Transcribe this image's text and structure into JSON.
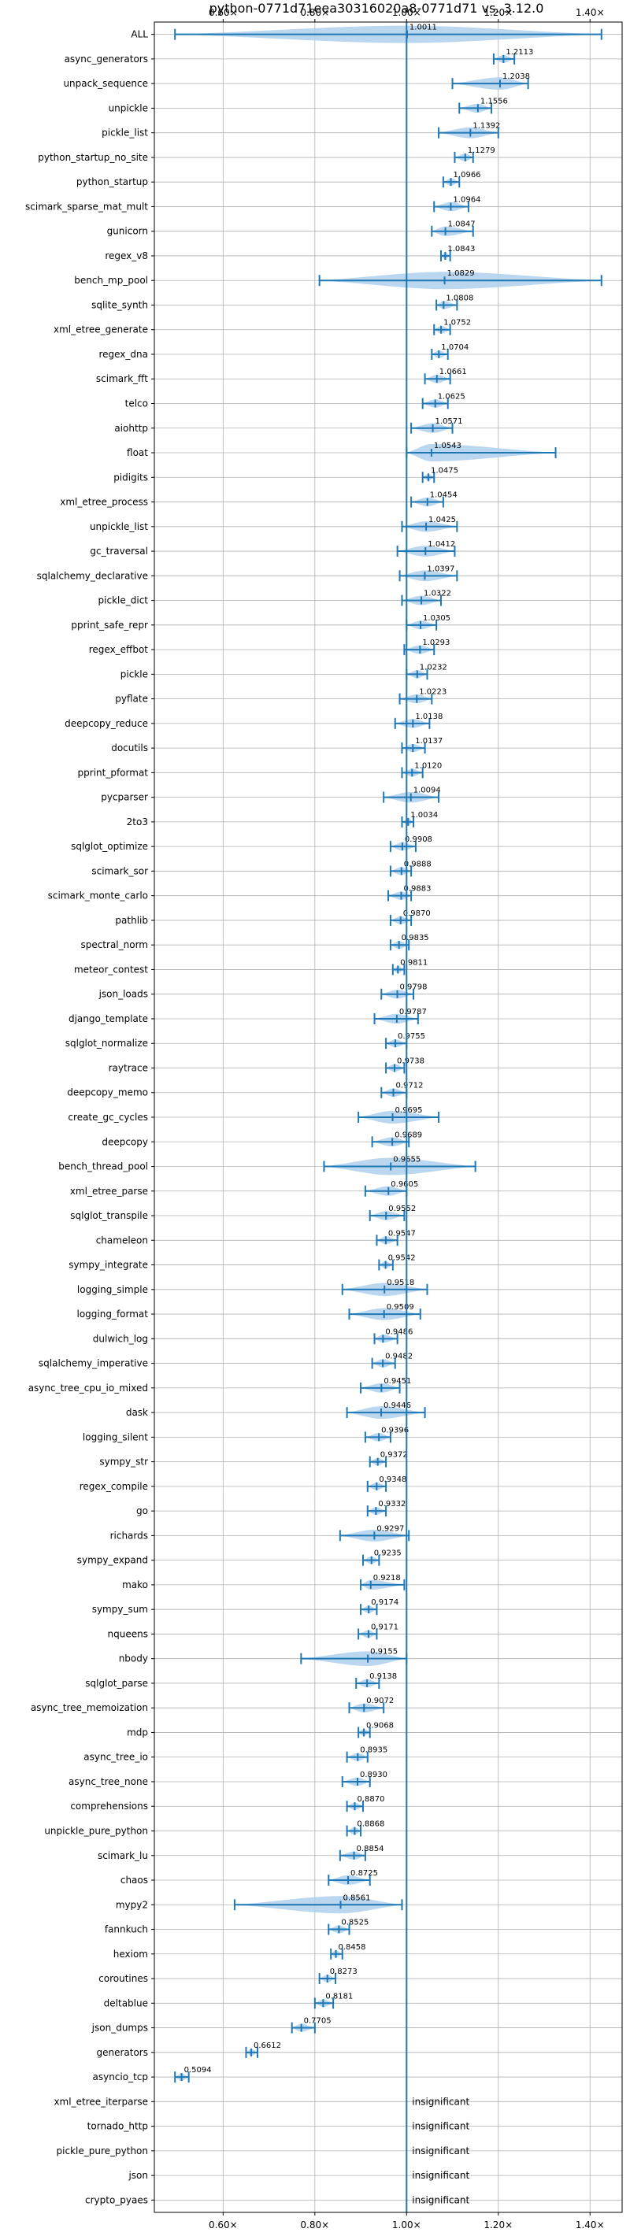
{
  "chart_data": {
    "type": "violin",
    "title": "python-0771d71eea30316020a8-0771d71 vs. 3.12.0",
    "xlabel": "",
    "ylabel": "",
    "xlim": [
      0.45,
      1.47
    ],
    "xticks": [
      0.6,
      0.8,
      1.0,
      1.2,
      1.4
    ],
    "xtick_labels": [
      "0.60×",
      "0.80×",
      "1.00×",
      "1.20×",
      "1.40×"
    ],
    "reference_line": 1.0,
    "grid": true,
    "benchmarks": [
      {
        "name": "ALL",
        "value": "1.0011",
        "median": 1.0011,
        "min": 0.495,
        "max": 1.425
      },
      {
        "name": "async_generators",
        "value": "1.2113",
        "median": 1.2113,
        "min": 1.19,
        "max": 1.235
      },
      {
        "name": "unpack_sequence",
        "value": "1.2038",
        "median": 1.2038,
        "min": 1.1,
        "max": 1.265
      },
      {
        "name": "unpickle",
        "value": "1.1556",
        "median": 1.1556,
        "min": 1.115,
        "max": 1.185
      },
      {
        "name": "pickle_list",
        "value": "1.1392",
        "median": 1.1392,
        "min": 1.07,
        "max": 1.2
      },
      {
        "name": "python_startup_no_site",
        "value": "1.1279",
        "median": 1.1279,
        "min": 1.105,
        "max": 1.145
      },
      {
        "name": "python_startup",
        "value": "1.0966",
        "median": 1.0966,
        "min": 1.08,
        "max": 1.115
      },
      {
        "name": "scimark_sparse_mat_mult",
        "value": "1.0964",
        "median": 1.0964,
        "min": 1.06,
        "max": 1.135
      },
      {
        "name": "gunicorn",
        "value": "1.0847",
        "median": 1.0847,
        "min": 1.055,
        "max": 1.145
      },
      {
        "name": "regex_v8",
        "value": "1.0843",
        "median": 1.0843,
        "min": 1.075,
        "max": 1.095
      },
      {
        "name": "bench_mp_pool",
        "value": "1.0829",
        "median": 1.0829,
        "min": 0.81,
        "max": 1.425
      },
      {
        "name": "sqlite_synth",
        "value": "1.0808",
        "median": 1.0808,
        "min": 1.065,
        "max": 1.11
      },
      {
        "name": "xml_etree_generate",
        "value": "1.0752",
        "median": 1.0752,
        "min": 1.06,
        "max": 1.095
      },
      {
        "name": "regex_dna",
        "value": "1.0704",
        "median": 1.0704,
        "min": 1.055,
        "max": 1.09
      },
      {
        "name": "scimark_fft",
        "value": "1.0661",
        "median": 1.0661,
        "min": 1.04,
        "max": 1.095
      },
      {
        "name": "telco",
        "value": "1.0625",
        "median": 1.0625,
        "min": 1.035,
        "max": 1.09
      },
      {
        "name": "aiohttp",
        "value": "1.0571",
        "median": 1.0571,
        "min": 1.01,
        "max": 1.1
      },
      {
        "name": "float",
        "value": "1.0543",
        "median": 1.0543,
        "min": 1.0,
        "max": 1.325
      },
      {
        "name": "pidigits",
        "value": "1.0475",
        "median": 1.0475,
        "min": 1.035,
        "max": 1.06
      },
      {
        "name": "xml_etree_process",
        "value": "1.0454",
        "median": 1.0454,
        "min": 1.01,
        "max": 1.08
      },
      {
        "name": "unpickle_list",
        "value": "1.0425",
        "median": 1.0425,
        "min": 0.99,
        "max": 1.11
      },
      {
        "name": "gc_traversal",
        "value": "1.0412",
        "median": 1.0412,
        "min": 0.98,
        "max": 1.105
      },
      {
        "name": "sqlalchemy_declarative",
        "value": "1.0397",
        "median": 1.0397,
        "min": 0.985,
        "max": 1.11
      },
      {
        "name": "pickle_dict",
        "value": "1.0322",
        "median": 1.0322,
        "min": 0.99,
        "max": 1.075
      },
      {
        "name": "pprint_safe_repr",
        "value": "1.0305",
        "median": 1.0305,
        "min": 1.0,
        "max": 1.065
      },
      {
        "name": "regex_effbot",
        "value": "1.0293",
        "median": 1.0293,
        "min": 0.995,
        "max": 1.06
      },
      {
        "name": "pickle",
        "value": "1.0232",
        "median": 1.0232,
        "min": 1.0,
        "max": 1.045
      },
      {
        "name": "pyflate",
        "value": "1.0223",
        "median": 1.0223,
        "min": 0.985,
        "max": 1.055
      },
      {
        "name": "deepcopy_reduce",
        "value": "1.0138",
        "median": 1.0138,
        "min": 0.975,
        "max": 1.05
      },
      {
        "name": "docutils",
        "value": "1.0137",
        "median": 1.0137,
        "min": 0.99,
        "max": 1.04
      },
      {
        "name": "pprint_pformat",
        "value": "1.0120",
        "median": 1.012,
        "min": 0.99,
        "max": 1.035
      },
      {
        "name": "pycparser",
        "value": "1.0094",
        "median": 1.0094,
        "min": 0.95,
        "max": 1.07
      },
      {
        "name": "2to3",
        "value": "1.0034",
        "median": 1.0034,
        "min": 0.99,
        "max": 1.015
      },
      {
        "name": "sqlglot_optimize",
        "value": "0.9908",
        "median": 0.9908,
        "min": 0.965,
        "max": 1.02
      },
      {
        "name": "scimark_sor",
        "value": "0.9888",
        "median": 0.9888,
        "min": 0.965,
        "max": 1.01
      },
      {
        "name": "scimark_monte_carlo",
        "value": "0.9883",
        "median": 0.9883,
        "min": 0.96,
        "max": 1.01
      },
      {
        "name": "pathlib",
        "value": "0.9870",
        "median": 0.987,
        "min": 0.965,
        "max": 1.01
      },
      {
        "name": "spectral_norm",
        "value": "0.9835",
        "median": 0.9835,
        "min": 0.965,
        "max": 1.005
      },
      {
        "name": "meteor_contest",
        "value": "0.9811",
        "median": 0.9811,
        "min": 0.97,
        "max": 0.995
      },
      {
        "name": "json_loads",
        "value": "0.9798",
        "median": 0.9798,
        "min": 0.945,
        "max": 1.015
      },
      {
        "name": "django_template",
        "value": "0.9787",
        "median": 0.9787,
        "min": 0.93,
        "max": 1.025
      },
      {
        "name": "sqlglot_normalize",
        "value": "0.9755",
        "median": 0.9755,
        "min": 0.955,
        "max": 1.0
      },
      {
        "name": "raytrace",
        "value": "0.9738",
        "median": 0.9738,
        "min": 0.955,
        "max": 0.995
      },
      {
        "name": "deepcopy_memo",
        "value": "0.9712",
        "median": 0.9712,
        "min": 0.945,
        "max": 1.0
      },
      {
        "name": "create_gc_cycles",
        "value": "0.9695",
        "median": 0.9695,
        "min": 0.895,
        "max": 1.07
      },
      {
        "name": "deepcopy",
        "value": "0.9689",
        "median": 0.9689,
        "min": 0.925,
        "max": 1.005
      },
      {
        "name": "bench_thread_pool",
        "value": "0.9655",
        "median": 0.9655,
        "min": 0.82,
        "max": 1.15
      },
      {
        "name": "xml_etree_parse",
        "value": "0.9605",
        "median": 0.9605,
        "min": 0.91,
        "max": 1.0
      },
      {
        "name": "sqlglot_transpile",
        "value": "0.9552",
        "median": 0.9552,
        "min": 0.92,
        "max": 0.995
      },
      {
        "name": "chameleon",
        "value": "0.9547",
        "median": 0.9547,
        "min": 0.935,
        "max": 0.98
      },
      {
        "name": "sympy_integrate",
        "value": "0.9542",
        "median": 0.9542,
        "min": 0.94,
        "max": 0.97
      },
      {
        "name": "logging_simple",
        "value": "0.9518",
        "median": 0.9518,
        "min": 0.86,
        "max": 1.045
      },
      {
        "name": "logging_format",
        "value": "0.9509",
        "median": 0.9509,
        "min": 0.875,
        "max": 1.03
      },
      {
        "name": "dulwich_log",
        "value": "0.9486",
        "median": 0.9486,
        "min": 0.93,
        "max": 0.98
      },
      {
        "name": "sqlalchemy_imperative",
        "value": "0.9482",
        "median": 0.9482,
        "min": 0.925,
        "max": 0.975
      },
      {
        "name": "async_tree_cpu_io_mixed",
        "value": "0.9451",
        "median": 0.9451,
        "min": 0.9,
        "max": 0.985
      },
      {
        "name": "dask",
        "value": "0.9446",
        "median": 0.9446,
        "min": 0.87,
        "max": 1.04
      },
      {
        "name": "logging_silent",
        "value": "0.9396",
        "median": 0.9396,
        "min": 0.91,
        "max": 0.965
      },
      {
        "name": "sympy_str",
        "value": "0.9372",
        "median": 0.9372,
        "min": 0.92,
        "max": 0.955
      },
      {
        "name": "regex_compile",
        "value": "0.9348",
        "median": 0.9348,
        "min": 0.915,
        "max": 0.955
      },
      {
        "name": "go",
        "value": "0.9332",
        "median": 0.9332,
        "min": 0.915,
        "max": 0.955
      },
      {
        "name": "richards",
        "value": "0.9297",
        "median": 0.9297,
        "min": 0.855,
        "max": 1.005
      },
      {
        "name": "sympy_expand",
        "value": "0.9235",
        "median": 0.9235,
        "min": 0.905,
        "max": 0.94
      },
      {
        "name": "mako",
        "value": "0.9218",
        "median": 0.9218,
        "min": 0.9,
        "max": 0.995
      },
      {
        "name": "sympy_sum",
        "value": "0.9174",
        "median": 0.9174,
        "min": 0.9,
        "max": 0.935
      },
      {
        "name": "nqueens",
        "value": "0.9171",
        "median": 0.9171,
        "min": 0.895,
        "max": 0.935
      },
      {
        "name": "nbody",
        "value": "0.9155",
        "median": 0.9155,
        "min": 0.77,
        "max": 1.0
      },
      {
        "name": "sqlglot_parse",
        "value": "0.9138",
        "median": 0.9138,
        "min": 0.89,
        "max": 0.94
      },
      {
        "name": "async_tree_memoization",
        "value": "0.9072",
        "median": 0.9072,
        "min": 0.875,
        "max": 0.95
      },
      {
        "name": "mdp",
        "value": "0.9068",
        "median": 0.9068,
        "min": 0.895,
        "max": 0.92
      },
      {
        "name": "async_tree_io",
        "value": "0.8935",
        "median": 0.8935,
        "min": 0.87,
        "max": 0.915
      },
      {
        "name": "async_tree_none",
        "value": "0.8930",
        "median": 0.893,
        "min": 0.86,
        "max": 0.92
      },
      {
        "name": "comprehensions",
        "value": "0.8870",
        "median": 0.887,
        "min": 0.87,
        "max": 0.905
      },
      {
        "name": "unpickle_pure_python",
        "value": "0.8868",
        "median": 0.8868,
        "min": 0.87,
        "max": 0.9
      },
      {
        "name": "scimark_lu",
        "value": "0.8854",
        "median": 0.8854,
        "min": 0.855,
        "max": 0.91
      },
      {
        "name": "chaos",
        "value": "0.8725",
        "median": 0.8725,
        "min": 0.83,
        "max": 0.92
      },
      {
        "name": "mypy2",
        "value": "0.8561",
        "median": 0.8561,
        "min": 0.625,
        "max": 0.99
      },
      {
        "name": "fannkuch",
        "value": "0.8525",
        "median": 0.8525,
        "min": 0.83,
        "max": 0.875
      },
      {
        "name": "hexiom",
        "value": "0.8458",
        "median": 0.8458,
        "min": 0.835,
        "max": 0.86
      },
      {
        "name": "coroutines",
        "value": "0.8273",
        "median": 0.8273,
        "min": 0.81,
        "max": 0.845
      },
      {
        "name": "deltablue",
        "value": "0.8181",
        "median": 0.8181,
        "min": 0.8,
        "max": 0.84
      },
      {
        "name": "json_dumps",
        "value": "0.7705",
        "median": 0.7705,
        "min": 0.75,
        "max": 0.8
      },
      {
        "name": "generators",
        "value": "0.6612",
        "median": 0.6612,
        "min": 0.65,
        "max": 0.675
      },
      {
        "name": "asyncio_tcp",
        "value": "0.5094",
        "median": 0.5094,
        "min": 0.495,
        "max": 0.525
      },
      {
        "name": "xml_etree_iterparse",
        "value": "insignificant",
        "median": null,
        "min": null,
        "max": null
      },
      {
        "name": "tornado_http",
        "value": "insignificant",
        "median": null,
        "min": null,
        "max": null
      },
      {
        "name": "pickle_pure_python",
        "value": "insignificant",
        "median": null,
        "min": null,
        "max": null
      },
      {
        "name": "json",
        "value": "insignificant",
        "median": null,
        "min": null,
        "max": null
      },
      {
        "name": "crypto_pyaes",
        "value": "insignificant",
        "median": null,
        "min": null,
        "max": null
      }
    ]
  }
}
